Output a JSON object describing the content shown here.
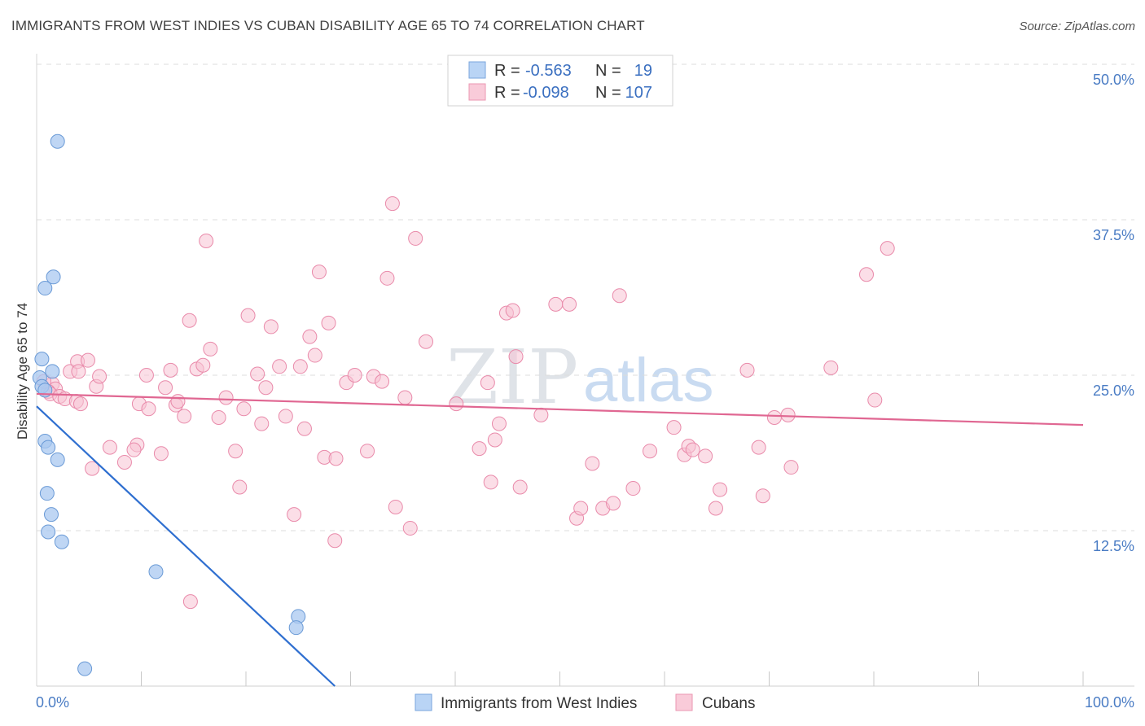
{
  "title": "IMMIGRANTS FROM WEST INDIES VS CUBAN DISABILITY AGE 65 TO 74 CORRELATION CHART",
  "source": "Source: ZipAtlas.com",
  "watermark": {
    "zip": "ZIP",
    "atlas": "atlas"
  },
  "chart_data": {
    "type": "scatter",
    "title": "IMMIGRANTS FROM WEST INDIES VS CUBAN DISABILITY AGE 65 TO 74 CORRELATION CHART",
    "xlabel": "",
    "ylabel": "Disability Age 65 to 74",
    "xlim": [
      0,
      100
    ],
    "ylim": [
      0,
      50
    ],
    "x_tick_labels": {
      "left": "0.0%",
      "right": "100.0%"
    },
    "y_ticks": [
      {
        "value": 12.5,
        "label": "12.5%"
      },
      {
        "value": 25.0,
        "label": "25.0%"
      },
      {
        "value": 37.5,
        "label": "37.5%"
      },
      {
        "value": 50.0,
        "label": "50.0%"
      }
    ],
    "grid": true,
    "legend_position": "top-center",
    "series": [
      {
        "name": "Immigrants from West Indies",
        "color": "#a9c8f0",
        "stroke": "#6a9ad6",
        "line_color": "#2f6fd0",
        "R_label": "R =",
        "R": "-0.563",
        "N_label": "N =",
        "N": "19",
        "trend": {
          "x": [
            0,
            28.5
          ],
          "y": [
            22.5,
            0
          ]
        },
        "points": [
          [
            2.0,
            43.8
          ],
          [
            0.5,
            26.3
          ],
          [
            1.5,
            25.3
          ],
          [
            0.3,
            24.8
          ],
          [
            0.5,
            24.1
          ],
          [
            0.8,
            23.8
          ],
          [
            1.6,
            32.9
          ],
          [
            0.8,
            32.0
          ],
          [
            0.8,
            19.7
          ],
          [
            1.1,
            19.2
          ],
          [
            2.0,
            18.2
          ],
          [
            1.0,
            15.5
          ],
          [
            1.4,
            13.8
          ],
          [
            1.1,
            12.4
          ],
          [
            2.4,
            11.6
          ],
          [
            11.4,
            9.2
          ],
          [
            25.0,
            5.6
          ],
          [
            24.8,
            4.7
          ],
          [
            4.6,
            1.4
          ]
        ]
      },
      {
        "name": "Cubans",
        "color": "#f7c3d3",
        "stroke": "#e98aaa",
        "line_color": "#e06792",
        "R_label": "R =",
        "R": "-0.098",
        "N_label": "N =",
        "N": "107",
        "trend": {
          "x": [
            0,
            100
          ],
          "y": [
            23.5,
            21.0
          ]
        },
        "points": [
          [
            1.5,
            24.3
          ],
          [
            1.8,
            23.9
          ],
          [
            1.1,
            23.7
          ],
          [
            1.3,
            23.5
          ],
          [
            0.7,
            24.5
          ],
          [
            2.2,
            23.3
          ],
          [
            2.7,
            23.1
          ],
          [
            3.2,
            25.3
          ],
          [
            3.8,
            22.9
          ],
          [
            3.9,
            26.1
          ],
          [
            4.0,
            25.3
          ],
          [
            4.2,
            22.7
          ],
          [
            4.9,
            26.2
          ],
          [
            5.7,
            24.1
          ],
          [
            6.0,
            24.9
          ],
          [
            5.3,
            17.5
          ],
          [
            7.0,
            19.2
          ],
          [
            8.4,
            18.0
          ],
          [
            9.6,
            19.4
          ],
          [
            9.3,
            19.0
          ],
          [
            9.8,
            22.7
          ],
          [
            10.5,
            25.0
          ],
          [
            10.7,
            22.3
          ],
          [
            11.9,
            18.7
          ],
          [
            12.3,
            24.0
          ],
          [
            12.8,
            25.4
          ],
          [
            13.3,
            22.6
          ],
          [
            13.5,
            22.9
          ],
          [
            14.1,
            21.7
          ],
          [
            14.6,
            29.4
          ],
          [
            15.3,
            25.5
          ],
          [
            15.9,
            25.8
          ],
          [
            16.2,
            35.8
          ],
          [
            16.6,
            27.1
          ],
          [
            17.4,
            21.6
          ],
          [
            18.1,
            23.2
          ],
          [
            19.0,
            18.9
          ],
          [
            19.4,
            16.0
          ],
          [
            19.8,
            22.3
          ],
          [
            20.2,
            29.8
          ],
          [
            21.1,
            25.1
          ],
          [
            21.5,
            21.1
          ],
          [
            21.9,
            24.0
          ],
          [
            22.4,
            28.9
          ],
          [
            23.2,
            25.7
          ],
          [
            23.8,
            21.7
          ],
          [
            24.6,
            13.8
          ],
          [
            25.2,
            25.7
          ],
          [
            25.6,
            20.7
          ],
          [
            26.1,
            28.1
          ],
          [
            26.6,
            26.6
          ],
          [
            27.0,
            33.3
          ],
          [
            27.5,
            18.4
          ],
          [
            27.9,
            29.2
          ],
          [
            28.6,
            18.3
          ],
          [
            29.6,
            24.4
          ],
          [
            30.4,
            25.0
          ],
          [
            31.6,
            18.9
          ],
          [
            32.2,
            24.9
          ],
          [
            33.0,
            24.5
          ],
          [
            33.5,
            32.8
          ],
          [
            34.0,
            38.8
          ],
          [
            34.3,
            14.4
          ],
          [
            35.2,
            23.2
          ],
          [
            35.7,
            12.7
          ],
          [
            36.2,
            36.0
          ],
          [
            37.2,
            27.7
          ],
          [
            40.1,
            22.7
          ],
          [
            42.3,
            19.1
          ],
          [
            43.1,
            24.4
          ],
          [
            43.4,
            16.4
          ],
          [
            43.8,
            19.8
          ],
          [
            44.2,
            21.1
          ],
          [
            44.9,
            30.0
          ],
          [
            45.5,
            30.2
          ],
          [
            45.8,
            26.5
          ],
          [
            46.2,
            16.0
          ],
          [
            48.2,
            21.8
          ],
          [
            49.6,
            30.7
          ],
          [
            50.9,
            30.7
          ],
          [
            51.6,
            13.5
          ],
          [
            52.0,
            14.3
          ],
          [
            53.1,
            17.9
          ],
          [
            54.1,
            14.3
          ],
          [
            55.1,
            14.7
          ],
          [
            55.7,
            31.4
          ],
          [
            57.0,
            15.9
          ],
          [
            58.6,
            18.9
          ],
          [
            60.9,
            20.8
          ],
          [
            61.9,
            18.6
          ],
          [
            62.3,
            19.3
          ],
          [
            62.7,
            19.0
          ],
          [
            63.9,
            18.5
          ],
          [
            64.9,
            14.3
          ],
          [
            65.3,
            15.8
          ],
          [
            67.9,
            25.4
          ],
          [
            69.0,
            19.2
          ],
          [
            69.4,
            15.3
          ],
          [
            70.5,
            21.6
          ],
          [
            71.8,
            21.8
          ],
          [
            72.1,
            17.6
          ],
          [
            75.9,
            25.6
          ],
          [
            79.3,
            33.1
          ],
          [
            80.1,
            23.0
          ],
          [
            81.3,
            35.2
          ],
          [
            14.7,
            6.8
          ],
          [
            28.5,
            11.7
          ]
        ]
      }
    ]
  },
  "bottom_legend": [
    {
      "label": "Immigrants from West Indies"
    },
    {
      "label": "Cubans"
    }
  ]
}
